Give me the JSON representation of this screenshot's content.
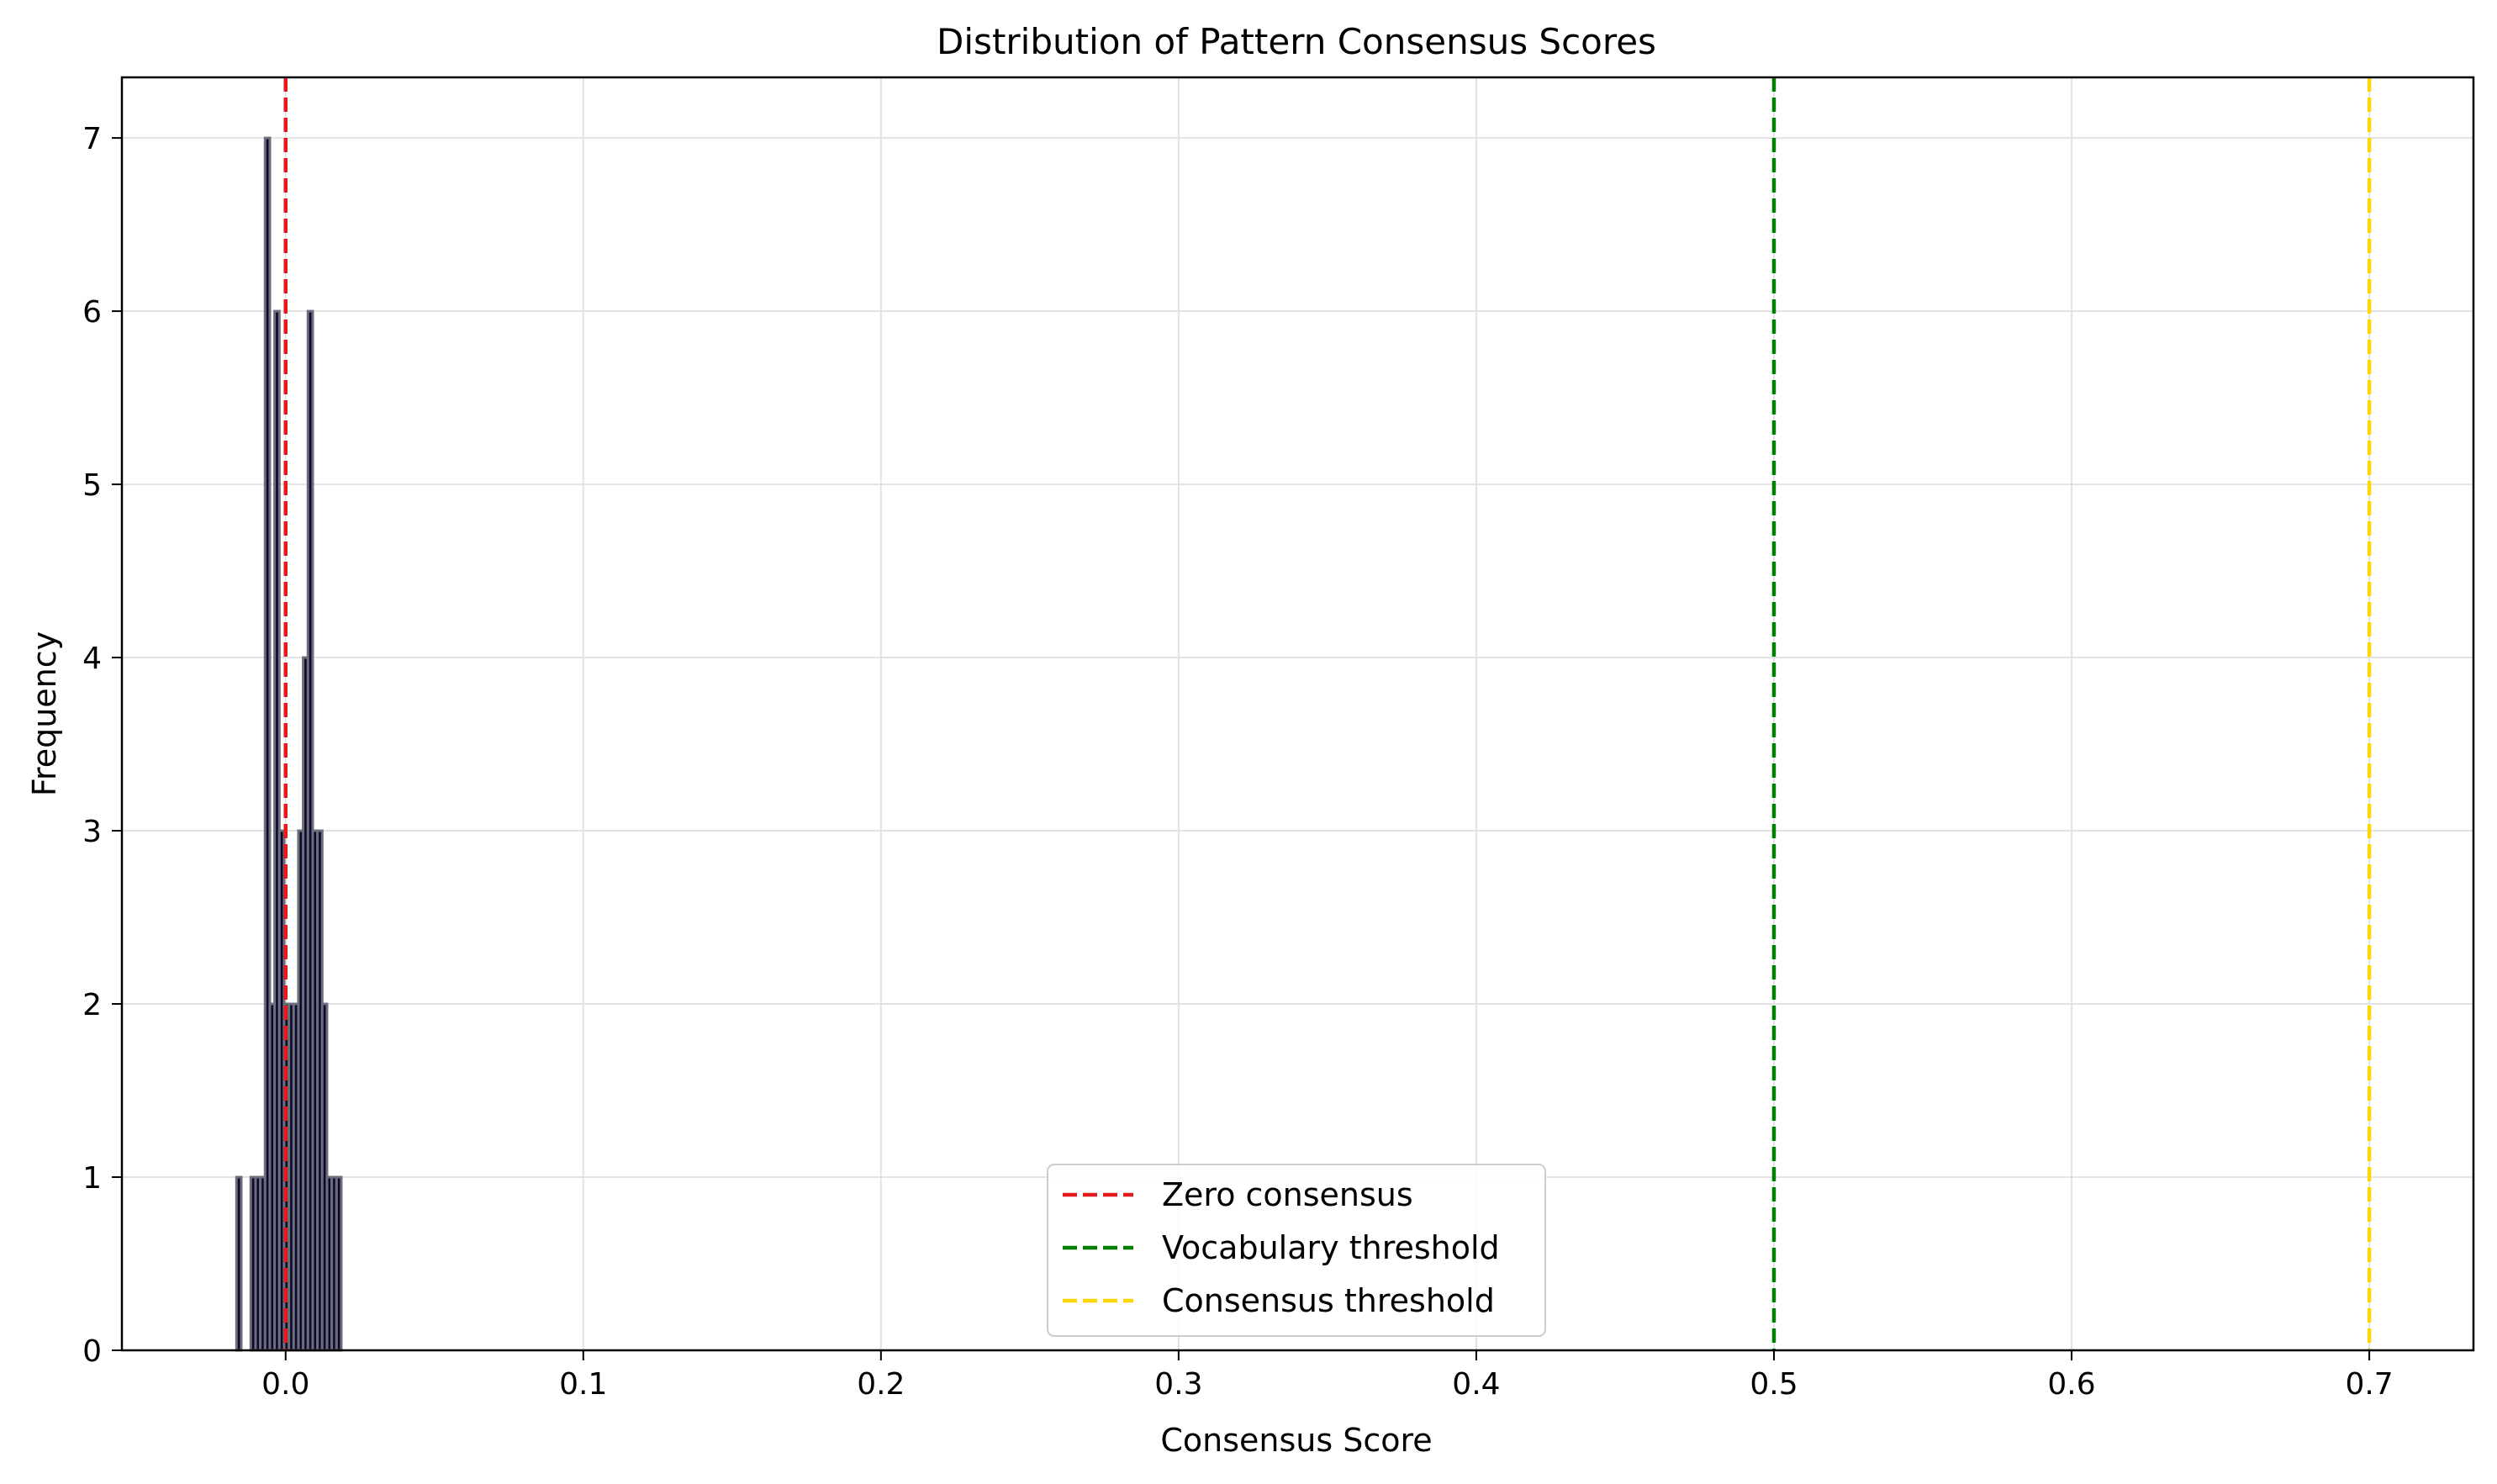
{
  "chart_data": {
    "type": "histogram",
    "title": "Distribution of Pattern Consensus Scores",
    "xlabel": "Consensus Score",
    "ylabel": "Frequency",
    "xlim": [
      -0.055,
      0.735
    ],
    "ylim": [
      0,
      7.35
    ],
    "xticks": [
      0.0,
      0.1,
      0.2,
      0.3,
      0.4,
      0.5,
      0.6,
      0.7
    ],
    "xtick_labels": [
      "0.0",
      "0.1",
      "0.2",
      "0.3",
      "0.4",
      "0.5",
      "0.6",
      "0.7"
    ],
    "yticks": [
      0,
      1,
      2,
      3,
      4,
      5,
      6,
      7
    ],
    "ytick_labels": [
      "0",
      "1",
      "2",
      "3",
      "4",
      "5",
      "6",
      "7"
    ],
    "grid": true,
    "bar_color": "#0a0a2e",
    "bins": [
      {
        "x0": -0.0165,
        "x1": -0.0149,
        "count": 1
      },
      {
        "x0": -0.0117,
        "x1": -0.0101,
        "count": 1
      },
      {
        "x0": -0.0101,
        "x1": -0.0085,
        "count": 1
      },
      {
        "x0": -0.0085,
        "x1": -0.0069,
        "count": 1
      },
      {
        "x0": -0.0069,
        "x1": -0.0053,
        "count": 7
      },
      {
        "x0": -0.0053,
        "x1": -0.0037,
        "count": 2
      },
      {
        "x0": -0.0037,
        "x1": -0.0021,
        "count": 6
      },
      {
        "x0": -0.0021,
        "x1": -0.0005,
        "count": 3
      },
      {
        "x0": -0.0005,
        "x1": 0.0011,
        "count": 2
      },
      {
        "x0": 0.0011,
        "x1": 0.0027,
        "count": 2
      },
      {
        "x0": 0.0027,
        "x1": 0.0043,
        "count": 2
      },
      {
        "x0": 0.0043,
        "x1": 0.0059,
        "count": 3
      },
      {
        "x0": 0.0059,
        "x1": 0.0075,
        "count": 4
      },
      {
        "x0": 0.0075,
        "x1": 0.0091,
        "count": 6
      },
      {
        "x0": 0.0091,
        "x1": 0.0107,
        "count": 3
      },
      {
        "x0": 0.0107,
        "x1": 0.0123,
        "count": 3
      },
      {
        "x0": 0.0123,
        "x1": 0.0139,
        "count": 2
      },
      {
        "x0": 0.0139,
        "x1": 0.0155,
        "count": 1
      },
      {
        "x0": 0.0155,
        "x1": 0.0171,
        "count": 1
      },
      {
        "x0": 0.0171,
        "x1": 0.0187,
        "count": 1
      }
    ],
    "reference_lines": [
      {
        "x": 0.0,
        "label": "Zero consensus",
        "color": "#e41a1c"
      },
      {
        "x": 0.5,
        "label": "Vocabulary threshold",
        "color": "#008000"
      },
      {
        "x": 0.7,
        "label": "Consensus threshold",
        "color": "#ffd700"
      }
    ],
    "legend_position": "bottom-center"
  }
}
